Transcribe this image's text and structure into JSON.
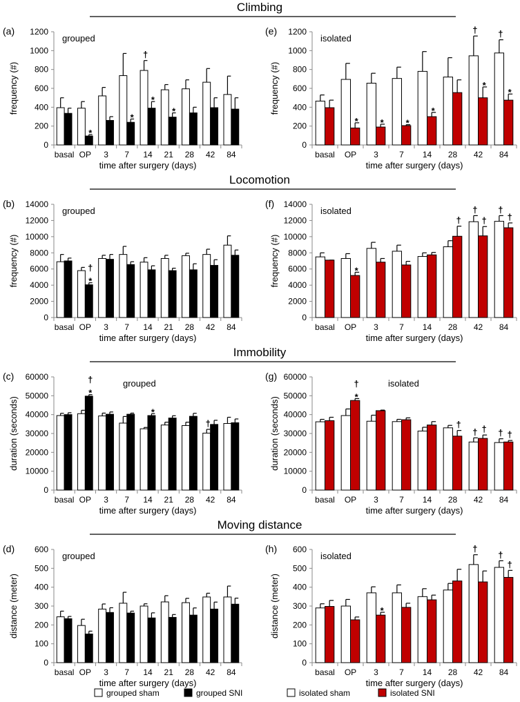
{
  "sections": [
    "Climbing",
    "Locomotion",
    "Immobility",
    "Moving distance"
  ],
  "legend": [
    {
      "label": "grouped sham",
      "color": "#ffffff"
    },
    {
      "label": "grouped SNI",
      "color": "#000000"
    },
    {
      "label": "isolated sham",
      "color": "#ffffff"
    },
    {
      "label": "isolated SNI",
      "color": "#c00000"
    }
  ],
  "chart_data": [
    {
      "type": "bar",
      "panel": "(a)",
      "group_label": "grouped",
      "title": "Climbing",
      "categories": [
        "basal",
        "OP",
        "3",
        "7",
        "14",
        "21",
        "28",
        "42",
        "84"
      ],
      "xlabel": "time after surgery (days)",
      "ylabel": "frequency (#)",
      "ylim": [
        0,
        1200
      ],
      "yticks": [
        0,
        200,
        400,
        600,
        800,
        1000,
        1200
      ],
      "series": [
        {
          "name": "grouped sham",
          "color": "#ffffff",
          "values": [
            395,
            390,
            520,
            735,
            790,
            585,
            595,
            665,
            535
          ],
          "errors": [
            105,
            70,
            90,
            235,
            105,
            55,
            95,
            145,
            195
          ],
          "annotations": [
            "",
            "",
            "",
            "",
            "†",
            "",
            "",
            "",
            ""
          ]
        },
        {
          "name": "grouped SNI",
          "color": "#000000",
          "values": [
            335,
            95,
            260,
            240,
            390,
            295,
            340,
            395,
            380
          ],
          "errors": [
            55,
            15,
            40,
            35,
            70,
            45,
            60,
            105,
            120
          ],
          "annotations": [
            "",
            "*",
            "",
            "*",
            "*",
            "*",
            "",
            "",
            ""
          ]
        }
      ]
    },
    {
      "type": "bar",
      "panel": "(e)",
      "group_label": "isolated",
      "title": "Climbing",
      "categories": [
        "basal",
        "OP",
        "3",
        "7",
        "14",
        "28",
        "42",
        "84"
      ],
      "xlabel": "time after surgery (days)",
      "ylabel": "frequency (#)",
      "ylim": [
        0,
        1200
      ],
      "yticks": [
        0,
        200,
        400,
        600,
        800,
        1000,
        1200
      ],
      "series": [
        {
          "name": "isolated sham",
          "color": "#ffffff",
          "values": [
            465,
            695,
            655,
            705,
            780,
            720,
            945,
            975
          ],
          "errors": [
            65,
            170,
            105,
            120,
            210,
            205,
            210,
            140
          ],
          "annotations": [
            "",
            "",
            "",
            "",
            "",
            "",
            "†",
            "†"
          ]
        },
        {
          "name": "isolated SNI",
          "color": "#c00000",
          "values": [
            395,
            180,
            190,
            205,
            300,
            555,
            500,
            475
          ],
          "errors": [
            80,
            55,
            30,
            10,
            45,
            135,
            115,
            65
          ],
          "annotations": [
            "",
            "*",
            "*",
            "*",
            "*",
            "",
            "*",
            "*"
          ]
        }
      ]
    },
    {
      "type": "bar",
      "panel": "(b)",
      "group_label": "grouped",
      "title": "Locomotion",
      "categories": [
        "basal",
        "OP",
        "3",
        "7",
        "14",
        "21",
        "28",
        "42",
        "84"
      ],
      "xlabel": "time after surgery (days)",
      "ylabel": "frequency (#)",
      "ylim": [
        0,
        14000
      ],
      "yticks": [
        0,
        2000,
        4000,
        6000,
        8000,
        10000,
        12000,
        14000
      ],
      "series": [
        {
          "name": "grouped sham",
          "color": "#ffffff",
          "values": [
            6900,
            5800,
            7300,
            7800,
            6850,
            7300,
            7650,
            7800,
            8950
          ],
          "errors": [
            900,
            400,
            400,
            1000,
            550,
            400,
            300,
            650,
            1150
          ],
          "annotations": [
            "",
            "",
            "",
            "",
            "",
            "",
            "",
            "",
            ""
          ]
        },
        {
          "name": "grouped SNI",
          "color": "#000000",
          "values": [
            7000,
            4050,
            7200,
            6550,
            5900,
            5800,
            5900,
            6450,
            7700
          ],
          "errors": [
            350,
            250,
            600,
            350,
            500,
            300,
            750,
            700,
            650
          ],
          "annotations": [
            "",
            "†*",
            "",
            "",
            "",
            "",
            "",
            "",
            ""
          ]
        }
      ]
    },
    {
      "type": "bar",
      "panel": "(f)",
      "group_label": "isolated",
      "title": "Locomotion",
      "categories": [
        "basal",
        "OP",
        "3",
        "7",
        "14",
        "28",
        "42",
        "84"
      ],
      "xlabel": "time after surgery (days)",
      "ylabel": "frequency (#)",
      "ylim": [
        0,
        14000
      ],
      "yticks": [
        0,
        2000,
        4000,
        6000,
        8000,
        10000,
        12000,
        14000
      ],
      "series": [
        {
          "name": "isolated sham",
          "color": "#ffffff",
          "values": [
            7500,
            7300,
            8550,
            8200,
            7550,
            8750,
            11850,
            11900
          ],
          "errors": [
            500,
            600,
            750,
            750,
            450,
            750,
            750,
            700
          ],
          "annotations": [
            "",
            "",
            "",
            "",
            "",
            "",
            "†",
            "†"
          ]
        },
        {
          "name": "isolated SNI",
          "color": "#c00000",
          "values": [
            7100,
            5200,
            6850,
            6500,
            7750,
            10050,
            10100,
            11100
          ],
          "errors": [
            0,
            400,
            450,
            450,
            300,
            1250,
            1150,
            600
          ],
          "annotations": [
            "",
            "*",
            "",
            "",
            "",
            "†",
            "†",
            "†"
          ]
        }
      ]
    },
    {
      "type": "bar",
      "panel": "(c)",
      "group_label": "grouped",
      "title": "Immobility",
      "categories": [
        "basal",
        "OP",
        "3",
        "7",
        "14",
        "21",
        "28",
        "42",
        "84"
      ],
      "xlabel": "time after surgery (days)",
      "ylabel": "duration (seconds)",
      "ylim": [
        0,
        60000
      ],
      "yticks": [
        0,
        10000,
        20000,
        30000,
        40000,
        50000,
        60000
      ],
      "series": [
        {
          "name": "grouped sham",
          "color": "#ffffff",
          "values": [
            39500,
            40500,
            39300,
            35500,
            32500,
            34500,
            34200,
            30200,
            35300
          ],
          "errors": [
            1200,
            1800,
            1500,
            3500,
            700,
            1500,
            1800,
            2000,
            3300
          ],
          "annotations": [
            "",
            "",
            "",
            "",
            "",
            "",
            "",
            "†",
            ""
          ]
        },
        {
          "name": "grouped SNI",
          "color": "#000000",
          "values": [
            40000,
            49800,
            40200,
            40200,
            39500,
            38200,
            39100,
            34800,
            35700
          ],
          "errors": [
            1000,
            800,
            1200,
            600,
            1000,
            1200,
            1600,
            2200,
            2000
          ],
          "annotations": [
            "",
            "†*",
            "",
            "",
            "*",
            "",
            "",
            "",
            ""
          ]
        }
      ]
    },
    {
      "type": "bar",
      "panel": "(g)",
      "group_label": "isolated",
      "title": "Immobility",
      "categories": [
        "basal",
        "OP",
        "3",
        "7",
        "14",
        "28",
        "42",
        "84"
      ],
      "xlabel": "time after surgery (days)",
      "ylabel": "duration (seconds)",
      "ylim": [
        0,
        60000
      ],
      "yticks": [
        0,
        10000,
        20000,
        30000,
        40000,
        50000,
        60000
      ],
      "series": [
        {
          "name": "isolated sham",
          "color": "#ffffff",
          "values": [
            36200,
            39500,
            36500,
            36300,
            31300,
            33000,
            25500,
            25200
          ],
          "errors": [
            1300,
            3500,
            3200,
            1200,
            2000,
            1300,
            2200,
            2000
          ],
          "annotations": [
            "",
            "",
            "",
            "",
            "",
            "",
            "†",
            "†"
          ]
        },
        {
          "name": "isolated SNI",
          "color": "#c00000",
          "values": [
            36800,
            47500,
            42100,
            37300,
            34500,
            28600,
            27400,
            25500
          ],
          "errors": [
            1800,
            1000,
            300,
            1000,
            1800,
            3000,
            1800,
            800
          ],
          "annotations": [
            "",
            "†*",
            "",
            "",
            "",
            "†",
            "†",
            "†"
          ]
        }
      ]
    },
    {
      "type": "bar",
      "panel": "(d)",
      "group_label": "grouped",
      "title": "Moving distance",
      "categories": [
        "basal",
        "OP",
        "3",
        "7",
        "14",
        "21",
        "28",
        "42",
        "84"
      ],
      "xlabel": "time after surgery (days)",
      "ylabel": "distance (meter)",
      "ylim": [
        0,
        600
      ],
      "yticks": [
        0,
        100,
        200,
        300,
        400,
        500,
        600
      ],
      "series": [
        {
          "name": "grouped sham",
          "color": "#ffffff",
          "values": [
            243,
            197,
            284,
            315,
            300,
            322,
            318,
            348,
            348
          ],
          "errors": [
            30,
            33,
            27,
            58,
            12,
            33,
            23,
            20,
            58
          ],
          "annotations": [
            "",
            "",
            "",
            "",
            "",
            "",
            "",
            "",
            ""
          ]
        },
        {
          "name": "grouped SNI",
          "color": "#000000",
          "values": [
            233,
            152,
            266,
            263,
            237,
            240,
            252,
            284,
            310
          ],
          "errors": [
            12,
            15,
            25,
            10,
            27,
            15,
            38,
            37,
            32
          ],
          "annotations": [
            "",
            "",
            "",
            "",
            "",
            "",
            "",
            "",
            ""
          ]
        }
      ]
    },
    {
      "type": "bar",
      "panel": "(h)",
      "group_label": "isolated",
      "title": "Moving distance",
      "categories": [
        "basal",
        "OP",
        "3",
        "7",
        "14",
        "28",
        "42",
        "84"
      ],
      "xlabel": "time after surgery (days)",
      "ylabel": "distance (meter)",
      "ylim": [
        0,
        600
      ],
      "yticks": [
        0,
        100,
        200,
        300,
        400,
        500,
        600
      ],
      "series": [
        {
          "name": "isolated sham",
          "color": "#ffffff",
          "values": [
            290,
            300,
            370,
            370,
            350,
            385,
            520,
            505
          ],
          "errors": [
            22,
            35,
            32,
            42,
            42,
            35,
            52,
            35
          ],
          "annotations": [
            "",
            "",
            "",
            "",
            "",
            "",
            "†",
            "†"
          ]
        },
        {
          "name": "isolated SNI",
          "color": "#c00000",
          "values": [
            298,
            227,
            252,
            293,
            333,
            433,
            428,
            452
          ],
          "errors": [
            32,
            15,
            15,
            22,
            25,
            62,
            58,
            37
          ],
          "annotations": [
            "",
            "",
            "*",
            "",
            "",
            "",
            "",
            "†"
          ]
        }
      ]
    }
  ]
}
